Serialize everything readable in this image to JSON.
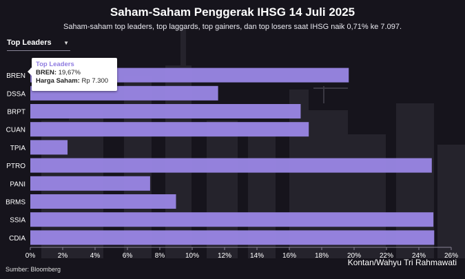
{
  "title": "Saham-Saham Penggerak IHSG 14 Juli 2025",
  "subtitle": "Saham-saham top leaders, top laggards, top gainers, dan top losers saat IHSG naik 0,71% ke 7.097.",
  "dropdown": {
    "selected": "Top Leaders",
    "arrow": "▼"
  },
  "tooltip": {
    "title": "Top Leaders",
    "line1_label": "BREN:",
    "line1_value": " 19,67%",
    "line2_label": "Harga Saham:",
    "line2_value": " Rp 7.300"
  },
  "source": "Sumber: Bloomberg",
  "credit": "Kontan/Wahyu Tri Rahmawati",
  "colors": {
    "bar": "#9a87e6",
    "background": "#16141c",
    "skyline": "#2c2a33"
  },
  "chart_data": {
    "type": "bar",
    "orientation": "horizontal",
    "categories": [
      "BREN",
      "DSSA",
      "BRPT",
      "CUAN",
      "TPIA",
      "PTRO",
      "PANI",
      "BRMS",
      "SSIA",
      "CDIA"
    ],
    "values": [
      19.67,
      11.6,
      16.7,
      17.2,
      2.3,
      24.8,
      7.4,
      9.0,
      24.9,
      24.95
    ],
    "x_ticks": [
      "0%",
      "2%",
      "4%",
      "6%",
      "8%",
      "10%",
      "12%",
      "14%",
      "16%",
      "18%",
      "20%",
      "22%",
      "24%",
      "26%"
    ],
    "xlim": [
      0,
      26
    ],
    "grid": false
  }
}
